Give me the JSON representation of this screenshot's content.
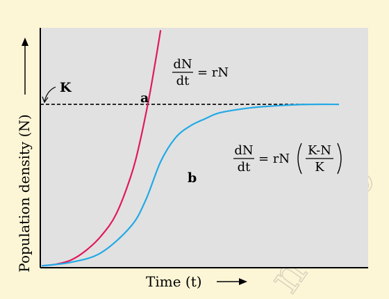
{
  "chart_data": {
    "type": "line",
    "xlabel": "Time (t)",
    "ylabel": "Population density (N)",
    "carrying_capacity_label": "K",
    "carrying_capacity": 0.68,
    "xlim": [
      0,
      1
    ],
    "ylim": [
      0,
      1
    ],
    "series": [
      {
        "name": "a",
        "equation": {
          "lhs_num": "dN",
          "lhs_den": "dt",
          "rhs": "= rN"
        },
        "color": "#e0195a",
        "x": [
          0,
          0.05,
          0.1,
          0.15,
          0.2,
          0.25,
          0.3,
          0.33,
          0.36,
          0.38,
          0.4
        ],
        "y": [
          0.005,
          0.012,
          0.03,
          0.07,
          0.13,
          0.22,
          0.38,
          0.52,
          0.7,
          0.84,
          0.99
        ]
      },
      {
        "name": "b",
        "equation": {
          "lhs_num": "dN",
          "lhs_den": "dt",
          "rhs": "= rN",
          "paren_num": "K-N",
          "paren_den": "K"
        },
        "color": "#22a9e6",
        "x": [
          0,
          0.1,
          0.2,
          0.3,
          0.35,
          0.4,
          0.45,
          0.5,
          0.55,
          0.6,
          0.7,
          0.8,
          0.9,
          1.0
        ],
        "y": [
          0.005,
          0.02,
          0.06,
          0.17,
          0.28,
          0.44,
          0.54,
          0.59,
          0.62,
          0.645,
          0.665,
          0.675,
          0.68,
          0.68
        ]
      }
    ]
  }
}
